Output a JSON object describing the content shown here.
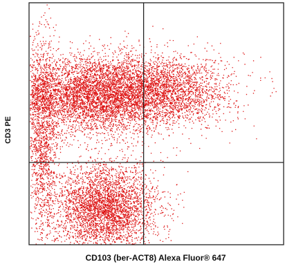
{
  "chart_data": {
    "type": "scatter",
    "xlabel": "CD103 (ber-ACT8) Alexa Fluor® 647",
    "ylabel": "CD3 PE",
    "title": "",
    "grid": false,
    "quadrant_gates": {
      "x": 0.45,
      "y": 0.34
    },
    "xlim": [
      0,
      1
    ],
    "ylim": [
      0,
      1
    ],
    "point_color": "#dd1111",
    "populations": [
      {
        "name": "",
        "cx": 0.26,
        "cy": 0.62,
        "sx": 0.16,
        "sy": 0.08,
        "count": 5200
      },
      {
        "name": "",
        "cx": 0.54,
        "cy": 0.64,
        "sx": 0.13,
        "sy": 0.07,
        "count": 2200
      },
      {
        "name": "",
        "cx": 0.3,
        "cy": 0.15,
        "sx": 0.1,
        "sy": 0.09,
        "count": 3600
      },
      {
        "name": "",
        "cx": 0.05,
        "cy": 0.45,
        "sx": 0.03,
        "sy": 0.22,
        "count": 1400
      }
    ]
  }
}
